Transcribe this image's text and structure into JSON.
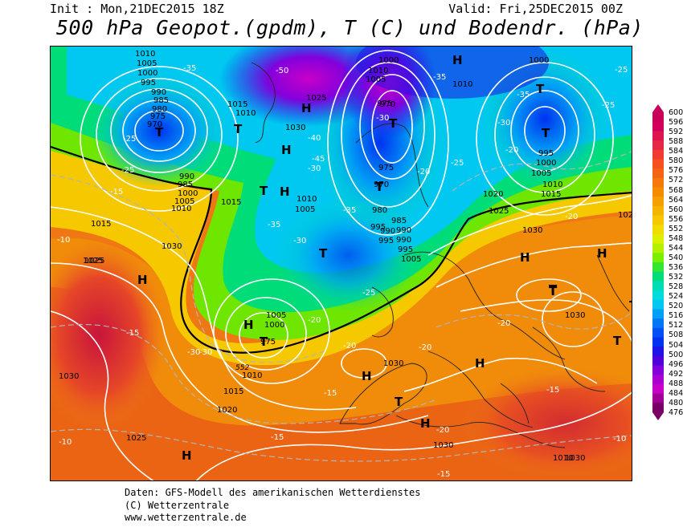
{
  "header": {
    "init": "Init : Mon,21DEC2015 18Z",
    "valid": "Valid: Fri,25DEC2015 00Z",
    "title": "500 hPa Geopot.(gpdm), T (C) und Bodendr. (hPa)"
  },
  "colorbar": {
    "labels": [
      "600",
      "596",
      "592",
      "588",
      "584",
      "580",
      "576",
      "572",
      "568",
      "564",
      "560",
      "556",
      "552",
      "548",
      "544",
      "540",
      "536",
      "532",
      "528",
      "524",
      "520",
      "516",
      "512",
      "508",
      "504",
      "500",
      "496",
      "492",
      "488",
      "484",
      "480",
      "476"
    ],
    "colors": [
      "#c8005a",
      "#d2005a",
      "#dc1450",
      "#e62846",
      "#f03c32",
      "#f5501e",
      "#f56414",
      "#f5780a",
      "#f58c00",
      "#f5a000",
      "#f5b400",
      "#f5c800",
      "#f0dc00",
      "#dcf000",
      "#b4f000",
      "#78f000",
      "#32e632",
      "#00dc78",
      "#00dcb4",
      "#00dcdc",
      "#00c8f0",
      "#00a0f5",
      "#0078f5",
      "#0050f5",
      "#0032f0",
      "#1e14e6",
      "#5000dc",
      "#8200dc",
      "#aa00d2",
      "#c800c8",
      "#a00096",
      "#780064"
    ]
  },
  "map_labels": {
    "pressure": [
      "1010",
      "1005",
      "1000",
      "995",
      "990",
      "985",
      "980",
      "975",
      "970",
      "1015",
      "1020",
      "1025",
      "1030",
      "1000",
      "1010",
      "1005",
      "990",
      "985",
      "980",
      "975",
      "970",
      "965",
      "1010",
      "1015",
      "1020",
      "1025",
      "1030",
      "1005",
      "1000",
      "975",
      "995",
      "990",
      "1030",
      "1010",
      "1015",
      "1020",
      "1025",
      "1000",
      "995",
      "990",
      "985",
      "980",
      "1010",
      "1005",
      "1030",
      "1030",
      "1015"
    ],
    "temperature": [
      "-35",
      "-50",
      "-25",
      "-25",
      "-15",
      "-10",
      "-35",
      "-30",
      "-35",
      "-30",
      "-25",
      "-25",
      "-20",
      "-45",
      "-30",
      "-40",
      "-35",
      "-30",
      "-25",
      "-20",
      "-20",
      "-25",
      "-30",
      "-20",
      "-15",
      "-15",
      "-10",
      "-20",
      "-20",
      "-15",
      "-15",
      "-20",
      "-10",
      "-20",
      "-30",
      "-35",
      "-15"
    ],
    "highs_lows": [
      "T",
      "T",
      "T",
      "H",
      "H",
      "T",
      "T",
      "T",
      "H",
      "T",
      "T",
      "H",
      "T",
      "H",
      "H",
      "H",
      "T",
      "H",
      "T",
      "H",
      "H",
      "H",
      "T",
      "T",
      "T",
      "H"
    ],
    "geopot": [
      "552",
      "552"
    ]
  },
  "footer": {
    "line1": "Daten: GFS-Modell des amerikanischen Wetterdienstes",
    "line2": "(C) Wetterzentrale",
    "line3": "www.wetterzentrale.de"
  }
}
